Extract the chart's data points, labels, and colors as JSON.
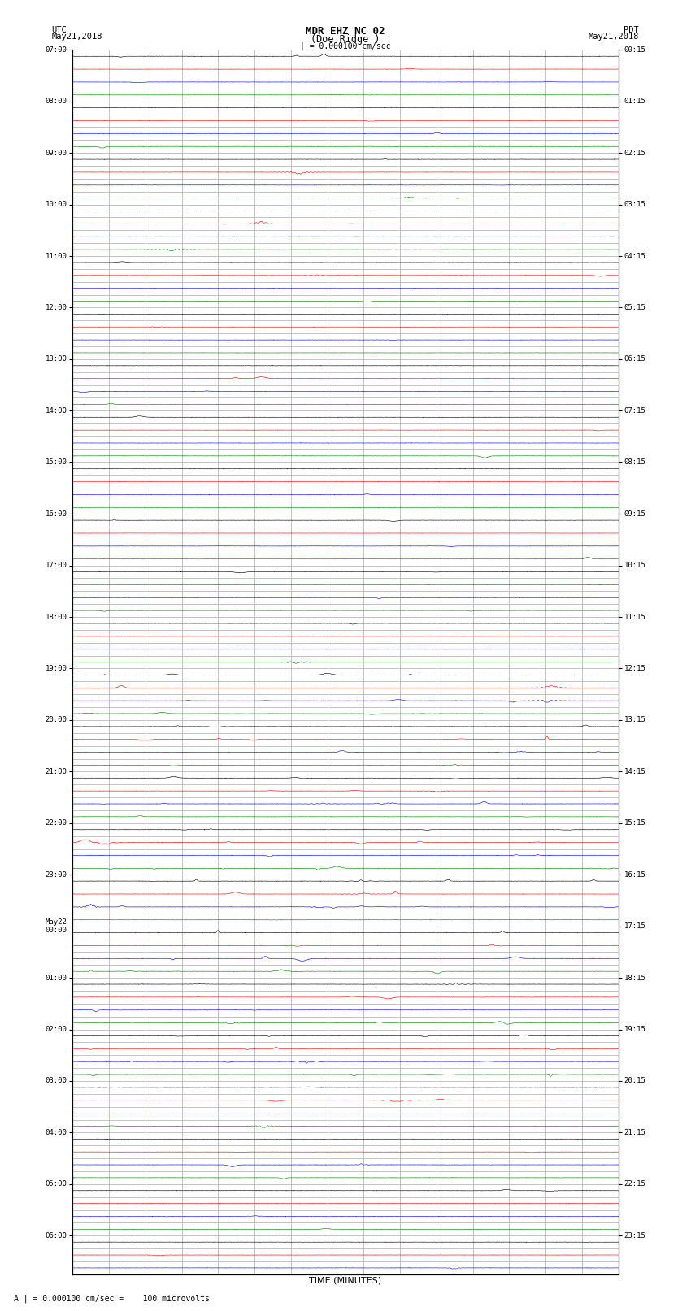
{
  "title_line1": "MDR EHZ NC 02",
  "title_line2": "(Doe Ridge )",
  "scale_label": "| = 0.000100 cm/sec",
  "footer_label": "A | = 0.000100 cm/sec =    100 microvolts",
  "xlabel": "TIME (MINUTES)",
  "utc_label": "UTC\nMay21,2018",
  "pdt_label": "PDT\nMay21,2018",
  "left_times": [
    "07:00",
    "",
    "",
    "",
    "08:00",
    "",
    "",
    "",
    "09:00",
    "",
    "",
    "",
    "10:00",
    "",
    "",
    "",
    "11:00",
    "",
    "",
    "",
    "12:00",
    "",
    "",
    "",
    "13:00",
    "",
    "",
    "",
    "14:00",
    "",
    "",
    "",
    "15:00",
    "",
    "",
    "",
    "16:00",
    "",
    "",
    "",
    "17:00",
    "",
    "",
    "",
    "18:00",
    "",
    "",
    "",
    "19:00",
    "",
    "",
    "",
    "20:00",
    "",
    "",
    "",
    "21:00",
    "",
    "",
    "",
    "22:00",
    "",
    "",
    "",
    "23:00",
    "",
    "",
    "",
    "May22\n00:00",
    "",
    "",
    "",
    "01:00",
    "",
    "",
    "",
    "02:00",
    "",
    "",
    "",
    "03:00",
    "",
    "",
    "",
    "04:00",
    "",
    "",
    "",
    "05:00",
    "",
    "",
    "",
    "06:00",
    "",
    ""
  ],
  "right_times": [
    "00:15",
    "",
    "",
    "",
    "01:15",
    "",
    "",
    "",
    "02:15",
    "",
    "",
    "",
    "03:15",
    "",
    "",
    "",
    "04:15",
    "",
    "",
    "",
    "05:15",
    "",
    "",
    "",
    "06:15",
    "",
    "",
    "",
    "07:15",
    "",
    "",
    "",
    "08:15",
    "",
    "",
    "",
    "09:15",
    "",
    "",
    "",
    "10:15",
    "",
    "",
    "",
    "11:15",
    "",
    "",
    "",
    "12:15",
    "",
    "",
    "",
    "13:15",
    "",
    "",
    "",
    "14:15",
    "",
    "",
    "",
    "15:15",
    "",
    "",
    "",
    "16:15",
    "",
    "",
    "",
    "17:15",
    "",
    "",
    "",
    "18:15",
    "",
    "",
    "",
    "19:15",
    "",
    "",
    "",
    "20:15",
    "",
    "",
    "",
    "21:15",
    "",
    "",
    "",
    "22:15",
    "",
    "",
    "",
    "23:15",
    "",
    ""
  ],
  "n_rows": 95,
  "n_cols": 15,
  "colors": [
    "black",
    "red",
    "blue",
    "green"
  ],
  "bg_color": "white",
  "grid_color": "#aaaaaa",
  "noise_amplitude": 0.012,
  "seed": 42,
  "samples": 3000
}
